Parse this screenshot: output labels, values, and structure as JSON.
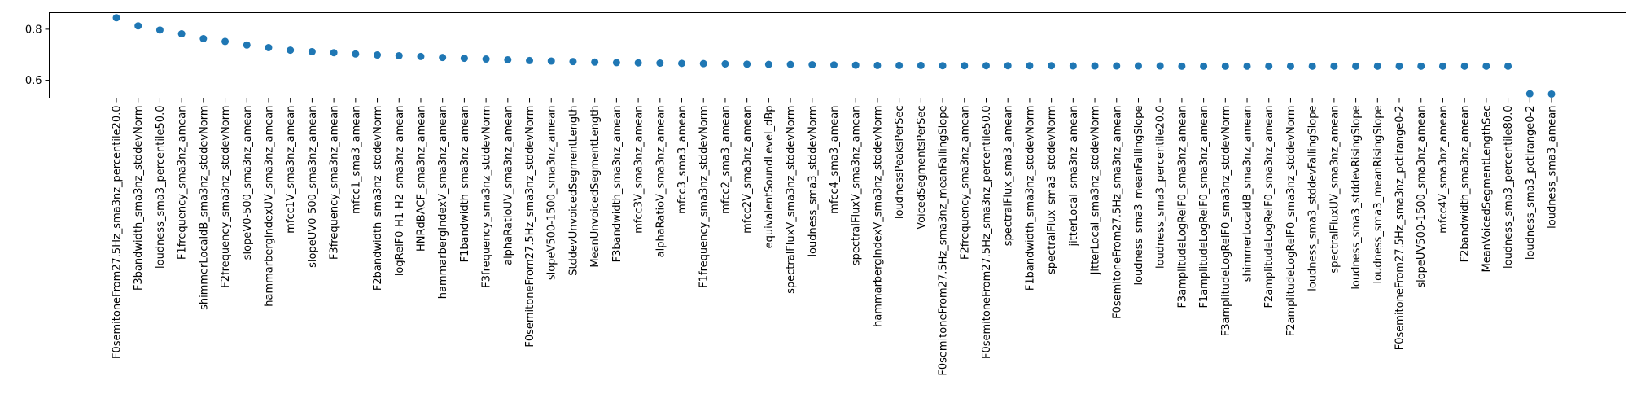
{
  "chart_data": {
    "type": "scatter",
    "title": "",
    "xlabel": "",
    "ylabel": "",
    "ylim": [
      0.53,
      0.865
    ],
    "yticks": [
      0.6,
      0.8
    ],
    "ytick_labels": [
      "0.6",
      "0.8"
    ],
    "grid": false,
    "marker_color": "#1f77b4",
    "categories": [
      "F0semitoneFrom27.5Hz_sma3nz_percentile20.0",
      "F3bandwidth_sma3nz_stddevNorm",
      "loudness_sma3_percentile50.0",
      "F1frequency_sma3nz_amean",
      "shimmerLocaldB_sma3nz_stddevNorm",
      "F2frequency_sma3nz_stddevNorm",
      "slopeV0-500_sma3nz_amean",
      "hammarbergIndexUV_sma3nz_amean",
      "mfcc1V_sma3nz_amean",
      "slopeUV0-500_sma3nz_amean",
      "F3frequency_sma3nz_amean",
      "mfcc1_sma3_amean",
      "F2bandwidth_sma3nz_stddevNorm",
      "logRelF0-H1-H2_sma3nz_amean",
      "HNRdBACF_sma3nz_amean",
      "hammarbergIndexV_sma3nz_amean",
      "F1bandwidth_sma3nz_amean",
      "F3frequency_sma3nz_stddevNorm",
      "alphaRatioUV_sma3nz_amean",
      "F0semitoneFrom27.5Hz_sma3nz_stddevNorm",
      "slopeV500-1500_sma3nz_amean",
      "StddevUnvoicedSegmentLength",
      "MeanUnvoicedSegmentLength",
      "F3bandwidth_sma3nz_amean",
      "mfcc3V_sma3nz_amean",
      "alphaRatioV_sma3nz_amean",
      "mfcc3_sma3_amean",
      "F1frequency_sma3nz_stddevNorm",
      "mfcc2_sma3_amean",
      "mfcc2V_sma3nz_amean",
      "equivalentSoundLevel_dBp",
      "spectralFluxV_sma3nz_stddevNorm",
      "loudness_sma3_stddevNorm",
      "mfcc4_sma3_amean",
      "spectralFluxV_sma3nz_amean",
      "hammarbergIndexV_sma3nz_stddevNorm",
      "loudnessPeaksPerSec",
      "VoicedSegmentsPerSec",
      "F0semitoneFrom27.5Hz_sma3nz_meanFallingSlope",
      "F2frequency_sma3nz_amean",
      "F0semitoneFrom27.5Hz_sma3nz_percentile50.0",
      "spectralFlux_sma3_amean",
      "F1bandwidth_sma3nz_stddevNorm",
      "spectralFlux_sma3_stddevNorm",
      "jitterLocal_sma3nz_amean",
      "jitterLocal_sma3nz_stddevNorm",
      "F0semitoneFrom27.5Hz_sma3nz_amean",
      "loudness_sma3_meanFallingSlope",
      "loudness_sma3_percentile20.0",
      "F3amplitudeLogRelF0_sma3nz_amean",
      "F1amplitudeLogRelF0_sma3nz_amean",
      "F3amplitudeLogRelF0_sma3nz_stddevNorm",
      "shimmerLocaldB_sma3nz_amean",
      "F2amplitudeLogRelF0_sma3nz_amean",
      "F2amplitudeLogRelF0_sma3nz_stddevNorm",
      "loudness_sma3_stddevFallingSlope",
      "spectralFluxUV_sma3nz_amean",
      "loudness_sma3_stddevRisingSlope",
      "loudness_sma3_meanRisingSlope",
      "F0semitoneFrom27.5Hz_sma3nz_pctlrange0-2",
      "slopeUV500-1500_sma3nz_amean",
      "mfcc4V_sma3nz_amean",
      "F2bandwidth_sma3nz_amean",
      "MeanVoicedSegmentLengthSec",
      "loudness_sma3_percentile80.0",
      "loudness_sma3_pctlrange0-2",
      "loudness_sma3_amean"
    ],
    "values": [
      0.845,
      0.813,
      0.797,
      0.782,
      0.763,
      0.752,
      0.738,
      0.728,
      0.718,
      0.712,
      0.708,
      0.703,
      0.699,
      0.696,
      0.693,
      0.689,
      0.686,
      0.683,
      0.68,
      0.677,
      0.675,
      0.673,
      0.671,
      0.669,
      0.668,
      0.667,
      0.666,
      0.665,
      0.664,
      0.663,
      0.662,
      0.662,
      0.661,
      0.66,
      0.659,
      0.658,
      0.658,
      0.658,
      0.657,
      0.657,
      0.657,
      0.657,
      0.657,
      0.657,
      0.656,
      0.656,
      0.656,
      0.656,
      0.656,
      0.655,
      0.655,
      0.655,
      0.655,
      0.655,
      0.655,
      0.655,
      0.655,
      0.655,
      0.655,
      0.655,
      0.655,
      0.655,
      0.655,
      0.655,
      0.655,
      0.547,
      0.546
    ]
  }
}
